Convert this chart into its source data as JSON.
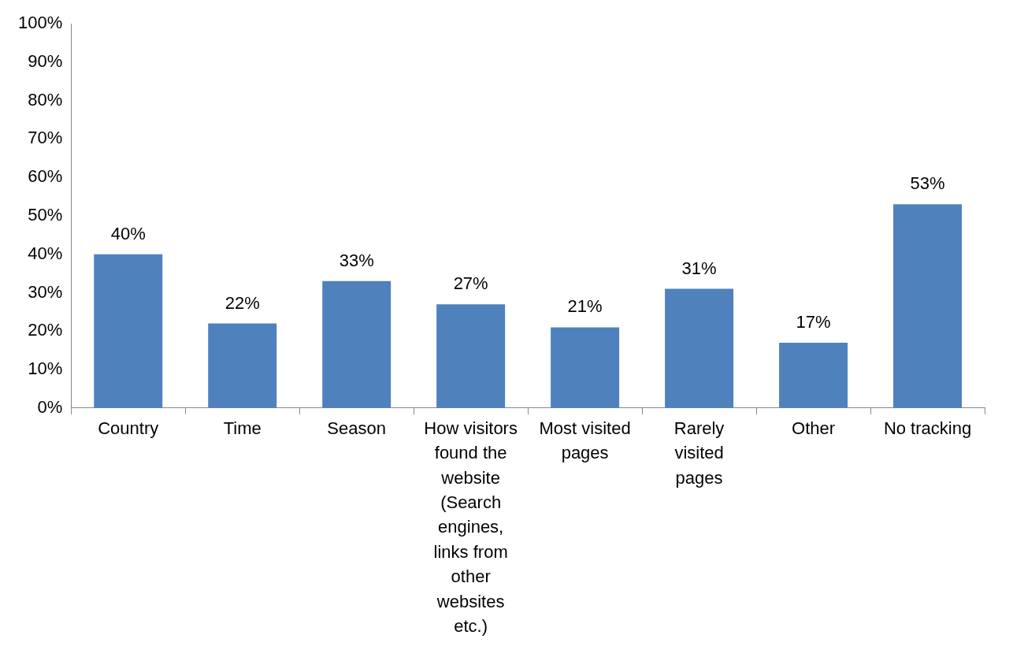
{
  "chart_data": {
    "type": "bar",
    "categories": [
      "Country",
      "Time",
      "Season",
      "How visitors found the website (Search engines, links from other websites etc.)",
      "Most visited pages",
      "Rarely visited pages",
      "Other",
      "No tracking"
    ],
    "values": [
      40,
      22,
      33,
      27,
      21,
      31,
      17,
      53
    ],
    "value_labels": [
      "40%",
      "22%",
      "33%",
      "27%",
      "21%",
      "31%",
      "17%",
      "53%"
    ],
    "color": "#4f81bd",
    "ylim": [
      0,
      100
    ],
    "yticks": [
      {
        "value": 0,
        "label": "0%"
      },
      {
        "value": 10,
        "label": "10%"
      },
      {
        "value": 20,
        "label": "20%"
      },
      {
        "value": 30,
        "label": "30%"
      },
      {
        "value": 40,
        "label": "40%"
      },
      {
        "value": 50,
        "label": "50%"
      },
      {
        "value": 60,
        "label": "60%"
      },
      {
        "value": 70,
        "label": "70%"
      },
      {
        "value": 80,
        "label": "80%"
      },
      {
        "value": 90,
        "label": "90%"
      },
      {
        "value": 100,
        "label": "100%"
      }
    ],
    "grid": false,
    "legend": false
  }
}
